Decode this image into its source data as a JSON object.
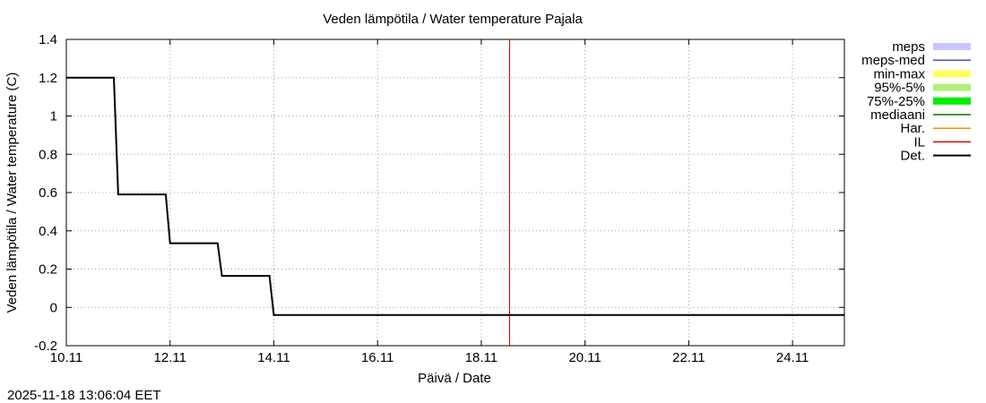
{
  "chart_data": {
    "type": "line",
    "title": "Veden lämpötila / Water temperature Pajala",
    "xlabel": "Päivä / Date",
    "ylabel": "Veden lämpötila / Water temperature (C)",
    "timestamp": "2025-11-18 13:06:04 EET",
    "xlim": [
      "2025-11-10",
      "2025-11-25"
    ],
    "ylim": [
      -0.2,
      1.4
    ],
    "grid": true,
    "legend_position": "right",
    "x_ticks": [
      {
        "label": "10.11",
        "date": "2025-11-10"
      },
      {
        "label": "12.11",
        "date": "2025-11-12"
      },
      {
        "label": "14.11",
        "date": "2025-11-14"
      },
      {
        "label": "16.11",
        "date": "2025-11-16"
      },
      {
        "label": "18.11",
        "date": "2025-11-18"
      },
      {
        "label": "20.11",
        "date": "2025-11-20"
      },
      {
        "label": "22.11",
        "date": "2025-11-22"
      },
      {
        "label": "24.11",
        "date": "2025-11-24"
      }
    ],
    "y_ticks": [
      {
        "label": "1.4",
        "value": 1.4
      },
      {
        "label": "1.2",
        "value": 1.2
      },
      {
        "label": "1",
        "value": 1.0
      },
      {
        "label": "0.8",
        "value": 0.8
      },
      {
        "label": "0.6",
        "value": 0.6
      },
      {
        "label": "0.4",
        "value": 0.4
      },
      {
        "label": "0.2",
        "value": 0.2
      },
      {
        "label": "0",
        "value": 0.0
      },
      {
        "label": "-0.2",
        "value": -0.2
      }
    ],
    "legend": [
      {
        "label": "meps",
        "color": "#c8c8ff",
        "style": "band"
      },
      {
        "label": "meps-med",
        "color": "#5050c8",
        "style": "line"
      },
      {
        "label": "min-max",
        "color": "#ffff64",
        "style": "band"
      },
      {
        "label": "95%-5%",
        "color": "#b4f078",
        "style": "band"
      },
      {
        "label": "75%-25%",
        "color": "#00ee00",
        "style": "band"
      },
      {
        "label": "mediaani",
        "color": "#007800",
        "style": "line"
      },
      {
        "label": "Har.",
        "color": "#ff8c00",
        "style": "line"
      },
      {
        "label": "IL",
        "color": "#dd0000",
        "style": "line"
      },
      {
        "label": "Det.",
        "color": "#000000",
        "style": "line"
      }
    ],
    "series": [
      {
        "name": "Det.",
        "color": "#000000",
        "points": [
          [
            "2025-11-10 00:00",
            1.2
          ],
          [
            "2025-11-10 22:00",
            1.2
          ],
          [
            "2025-11-11 00:00",
            0.59
          ],
          [
            "2025-11-11 22:00",
            0.59
          ],
          [
            "2025-11-12 00:00",
            0.335
          ],
          [
            "2025-11-12 22:00",
            0.335
          ],
          [
            "2025-11-13 00:00",
            0.165
          ],
          [
            "2025-11-13 22:00",
            0.165
          ],
          [
            "2025-11-14 00:00",
            -0.04
          ],
          [
            "2025-11-25 00:00",
            -0.04
          ]
        ]
      },
      {
        "name": "mediaani",
        "color": "#007800",
        "points": [
          [
            "2025-11-10 00:00",
            1.2
          ],
          [
            "2025-11-10 22:00",
            1.2
          ],
          [
            "2025-11-11 00:00",
            0.59
          ],
          [
            "2025-11-11 22:00",
            0.59
          ],
          [
            "2025-11-12 00:00",
            0.335
          ],
          [
            "2025-11-12 22:00",
            0.335
          ],
          [
            "2025-11-13 00:00",
            0.165
          ],
          [
            "2025-11-13 22:00",
            0.165
          ],
          [
            "2025-11-14 00:00",
            -0.04
          ]
        ]
      }
    ],
    "vertical_lines": [
      {
        "name": "IL",
        "date": "2025-11-18 13:06",
        "color": "#dd0000"
      }
    ]
  }
}
